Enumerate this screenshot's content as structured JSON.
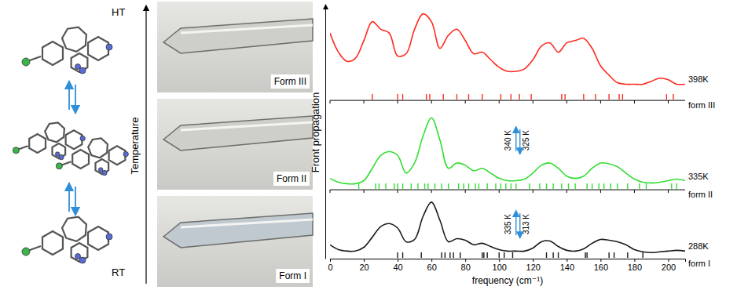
{
  "structures": {
    "axis_title": "Temperature",
    "top_label": "HT",
    "bottom_label": "RT"
  },
  "micrographs": [
    "Form III",
    "Form II",
    "Form I"
  ],
  "chart_data": {
    "type": "line",
    "x_label": "frequency (cm⁻¹)",
    "y_label": "Front propagation",
    "x": [
      0,
      5,
      10,
      15,
      20,
      25,
      30,
      35,
      40,
      45,
      50,
      55,
      60,
      65,
      70,
      75,
      80,
      85,
      90,
      95,
      100,
      105,
      110,
      115,
      120,
      125,
      130,
      135,
      140,
      145,
      150,
      155,
      160,
      165,
      170,
      175,
      180,
      185,
      190,
      195,
      200,
      205,
      210
    ],
    "xlim": [
      0,
      210
    ],
    "xticks": [
      0,
      20,
      40,
      60,
      80,
      100,
      120,
      140,
      160,
      180,
      200
    ],
    "ylim": [
      0,
      100
    ],
    "yticks": [],
    "tick_labels": "x",
    "series": [
      {
        "name": "form III",
        "temperature": "398K",
        "color": "#ff2a1f",
        "baseline": 62.7,
        "values": [
          89.4,
          81.8,
          78.2,
          79.4,
          86.4,
          93.9,
          90.9,
          89.4,
          80.3,
          81.2,
          90.9,
          97.0,
          93.9,
          83.3,
          88.5,
          90.9,
          86.4,
          81.2,
          81.8,
          78.8,
          75.8,
          74.2,
          74.2,
          75.2,
          78.8,
          84.2,
          85.5,
          81.8,
          85.5,
          86.4,
          87.3,
          83.3,
          76.4,
          72.7,
          69.7,
          69.1,
          69.1,
          69.1,
          70.3,
          71.5,
          70.9,
          69.1,
          69.1
        ],
        "modes": [
          25,
          40,
          43,
          57,
          59,
          67,
          75,
          82,
          90,
          101,
          107,
          112,
          119,
          137,
          139,
          150,
          157,
          165,
          171,
          173,
          199,
          203
        ]
      },
      {
        "name": "form II",
        "temperature": "335K",
        "color": "#33dd33",
        "baseline": 27.3,
        "values": [
          31.8,
          30.3,
          29.7,
          29.7,
          30.9,
          35.8,
          40.9,
          42.4,
          40.9,
          33.9,
          37.9,
          48.5,
          55.8,
          47.0,
          35.8,
          37.9,
          37.0,
          34.8,
          35.8,
          33.9,
          31.8,
          30.9,
          30.9,
          31.5,
          33.9,
          37.0,
          37.9,
          35.8,
          32.7,
          31.8,
          32.7,
          35.8,
          37.9,
          37.6,
          36.4,
          33.9,
          31.5,
          30.3,
          30.0,
          30.3,
          30.9,
          31.5,
          30.9
        ],
        "modes": [
          17,
          27,
          29,
          33,
          38,
          40,
          43,
          48,
          52,
          56,
          58,
          62,
          66,
          70,
          76,
          79,
          82,
          86,
          88,
          93,
          98,
          101,
          104,
          107,
          110,
          118,
          124,
          128,
          132,
          137,
          141,
          145,
          152,
          155,
          159,
          162,
          166,
          170,
          176,
          183,
          187,
          202,
          205
        ]
      },
      {
        "name": "form I",
        "temperature": "288K",
        "color": "#1a1a1a",
        "baseline": 0,
        "values": [
          5.5,
          3.6,
          3.0,
          3.0,
          4.5,
          8.5,
          12.7,
          13.9,
          12.1,
          6.7,
          7.6,
          16.7,
          22.4,
          15.2,
          6.7,
          7.9,
          7.3,
          5.5,
          6.1,
          4.8,
          3.6,
          3.0,
          3.0,
          3.0,
          4.2,
          6.7,
          7.0,
          4.8,
          3.3,
          3.0,
          3.9,
          6.1,
          7.6,
          7.3,
          6.7,
          5.5,
          3.6,
          2.7,
          2.4,
          2.7,
          3.0,
          3.3,
          3.0
        ],
        "modes": [
          40,
          43,
          54,
          66,
          68,
          71,
          73,
          77,
          90,
          91,
          93,
          100,
          103,
          108,
          128,
          132,
          135,
          151,
          152,
          165,
          168,
          176,
          185
        ]
      }
    ],
    "annotations": [
      {
        "up": "340 K",
        "down": "325 K"
      },
      {
        "up": "335 K",
        "down": "313 K"
      }
    ]
  }
}
